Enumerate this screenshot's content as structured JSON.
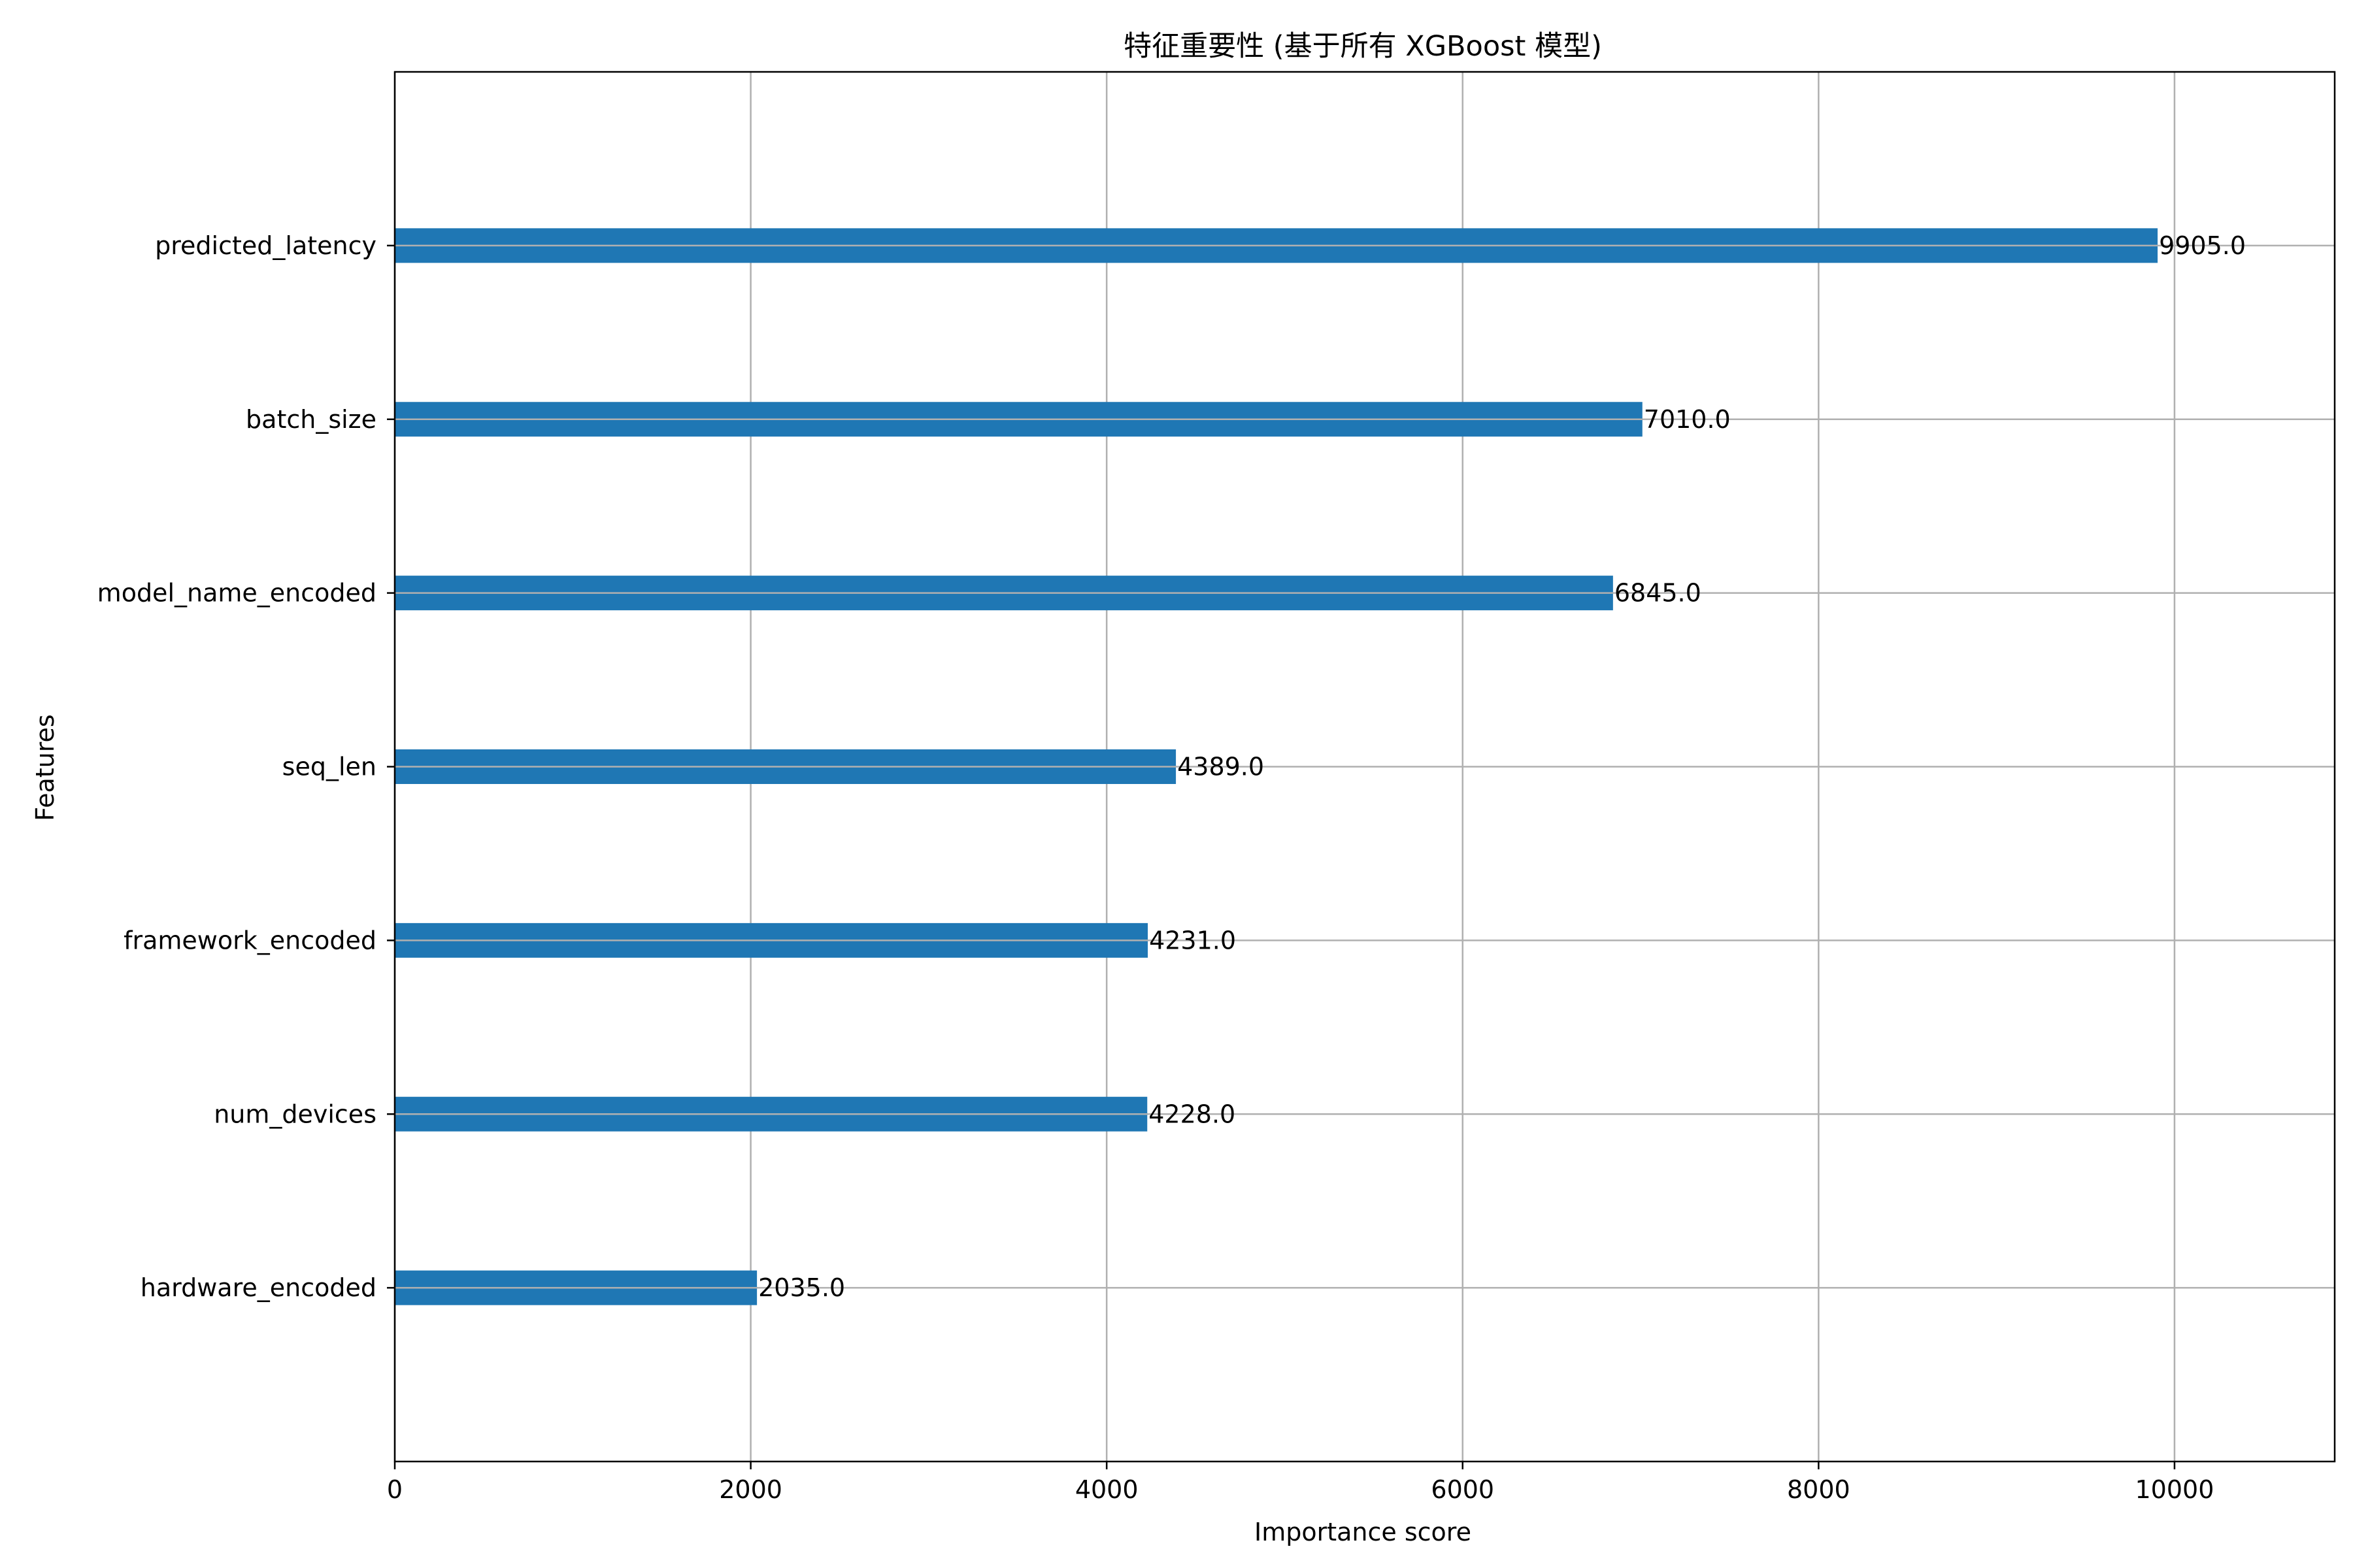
{
  "chart_data": {
    "type": "bar",
    "orientation": "horizontal",
    "title": "特征重要性 (基于所有 XGBoost 模型)",
    "xlabel": "Importance score",
    "ylabel": "Features",
    "categories": [
      "hardware_encoded",
      "num_devices",
      "framework_encoded",
      "seq_len",
      "model_name_encoded",
      "batch_size",
      "predicted_latency"
    ],
    "values": [
      2035.0,
      4228.0,
      4231.0,
      4389.0,
      6845.0,
      7010.0,
      9905.0
    ],
    "value_labels": [
      "2035.0",
      "4228.0",
      "4231.0",
      "4389.0",
      "6845.0",
      "7010.0",
      "9905.0"
    ],
    "xlim": [
      0,
      10900
    ],
    "xticks": [
      0,
      2000,
      4000,
      6000,
      8000,
      10000
    ],
    "xtick_labels": [
      "0",
      "2000",
      "4000",
      "6000",
      "8000",
      "10000"
    ],
    "grid": true,
    "colors": {
      "bar": "#1f77b4",
      "grid": "#b0b0b0",
      "axis": "#000000",
      "background": "#ffffff"
    }
  }
}
